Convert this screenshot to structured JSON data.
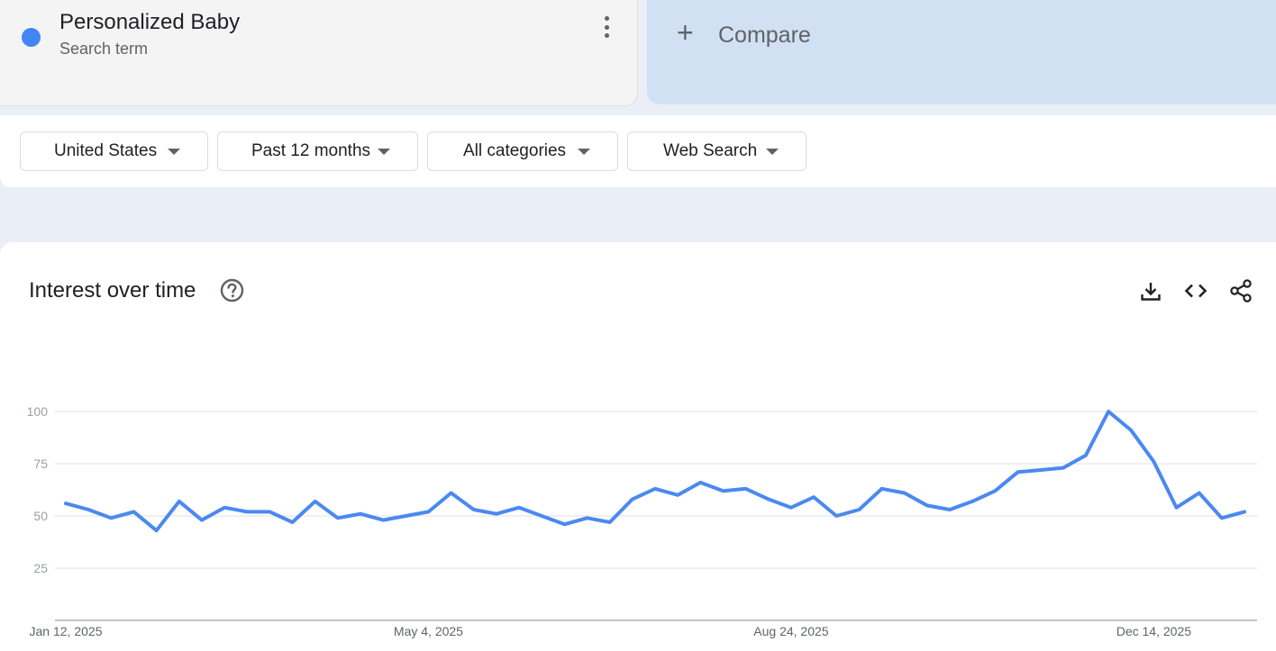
{
  "term": {
    "title": "Personalized Baby",
    "subtitle": "Search term",
    "color": "#4285f4"
  },
  "compare": {
    "plus": "+",
    "label": "Compare"
  },
  "filters": [
    {
      "label": "United States"
    },
    {
      "label": "Past 12 months"
    },
    {
      "label": "All categories"
    },
    {
      "label": "Web Search"
    }
  ],
  "chart": {
    "title": "Interest over time",
    "help_icon": "help-circle-icon",
    "tools": [
      "download-icon",
      "embed-code-icon",
      "share-icon"
    ]
  },
  "chart_data": {
    "type": "line",
    "x_tick_labels": [
      "Jan 12, 2025",
      "May 4, 2025",
      "Aug 24, 2025",
      "Dec 14, 2025"
    ],
    "y_ticks": [
      25,
      50,
      75,
      100
    ],
    "ylim": [
      0,
      100
    ],
    "grid": true,
    "line_color": "#4b89f0",
    "series": [
      {
        "values": [
          56,
          53,
          49,
          52,
          43,
          57,
          48,
          54,
          52,
          52,
          47,
          57,
          49,
          51,
          48,
          50,
          52,
          61,
          53,
          51,
          54,
          50,
          46,
          49,
          47,
          58,
          63,
          60,
          66,
          62,
          63,
          58,
          54,
          59,
          50,
          53,
          63,
          61,
          55,
          53,
          57,
          62,
          71,
          72,
          73,
          79,
          100,
          91,
          76,
          54,
          61,
          49,
          52
        ]
      }
    ]
  }
}
